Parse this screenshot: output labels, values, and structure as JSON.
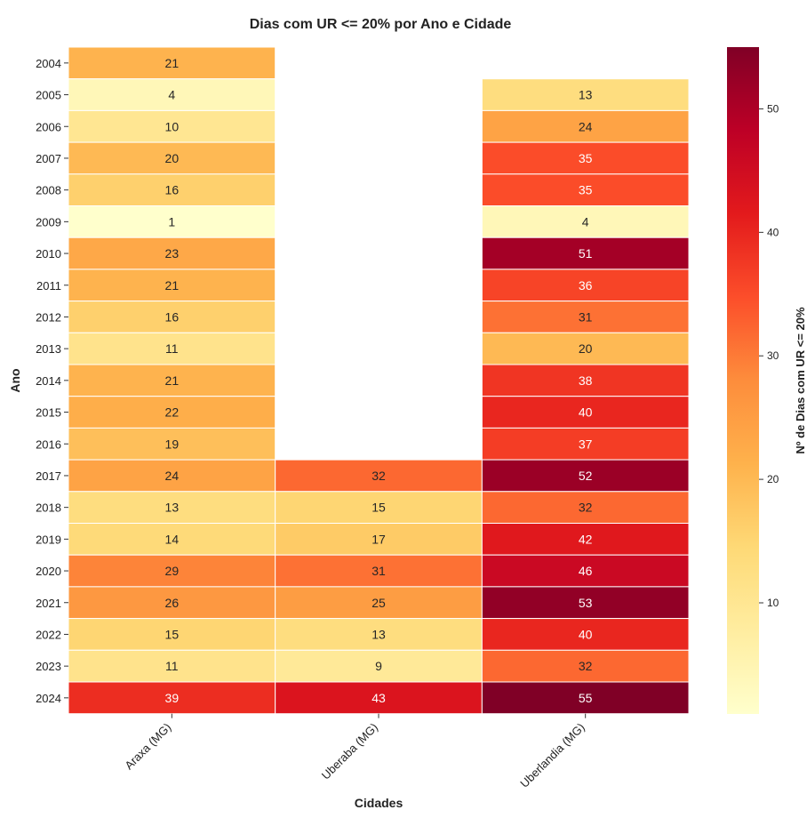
{
  "chart_data": {
    "type": "heatmap",
    "title": "Dias com UR <= 20% por Ano e Cidade",
    "xlabel": "Cidades",
    "ylabel": "Ano",
    "categories": [
      "Araxa (MG)",
      "Uberaba (MG)",
      "Uberlandia (MG)"
    ],
    "years": [
      "2004",
      "2005",
      "2006",
      "2007",
      "2008",
      "2009",
      "2010",
      "2011",
      "2012",
      "2013",
      "2014",
      "2015",
      "2016",
      "2017",
      "2018",
      "2019",
      "2020",
      "2021",
      "2022",
      "2023",
      "2024"
    ],
    "values": [
      [
        21,
        null,
        null
      ],
      [
        4,
        null,
        13
      ],
      [
        10,
        null,
        24
      ],
      [
        20,
        null,
        35
      ],
      [
        16,
        null,
        35
      ],
      [
        1,
        null,
        4
      ],
      [
        23,
        null,
        51
      ],
      [
        21,
        null,
        36
      ],
      [
        16,
        null,
        31
      ],
      [
        11,
        null,
        20
      ],
      [
        21,
        null,
        38
      ],
      [
        22,
        null,
        40
      ],
      [
        19,
        null,
        37
      ],
      [
        24,
        32,
        52
      ],
      [
        13,
        15,
        32
      ],
      [
        14,
        17,
        42
      ],
      [
        29,
        31,
        46
      ],
      [
        26,
        25,
        53
      ],
      [
        15,
        13,
        40
      ],
      [
        11,
        9,
        32
      ],
      [
        39,
        43,
        55
      ]
    ],
    "colorbar": {
      "label": "Nº de Dias com UR <= 20%",
      "range": [
        1,
        55
      ],
      "ticks": [
        10,
        20,
        30,
        40,
        50
      ]
    },
    "colormap": "YlOrRd",
    "annotations": true
  }
}
